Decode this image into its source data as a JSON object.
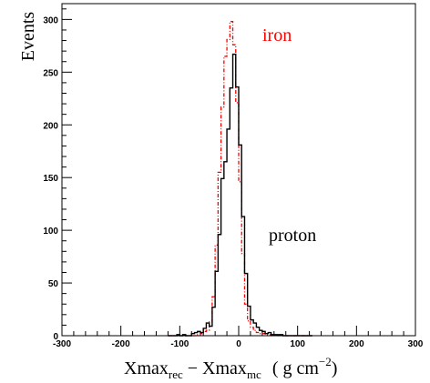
{
  "chart_data": {
    "type": "line",
    "title": "",
    "ylabel": "Events",
    "xlabel": {
      "base1": "Xmax",
      "sub1": "rec",
      "minus": "−",
      "base2": "Xmax",
      "sub2": "mc",
      "unit_open": "( g cm",
      "unit_exp": "−2",
      "unit_close": ")"
    },
    "xlim": [
      -300,
      300
    ],
    "ylim": [
      0,
      315
    ],
    "x_ticks": [
      -300,
      -200,
      -100,
      0,
      100,
      200,
      300
    ],
    "y_ticks": [
      0,
      50,
      100,
      150,
      200,
      250,
      300
    ],
    "bin_width": 5,
    "bin_start": -120,
    "grid": false,
    "series": [
      {
        "name": "proton",
        "color": "#000000",
        "style": "solid",
        "values": [
          0,
          0,
          0,
          1,
          0,
          1,
          0,
          0,
          2,
          3,
          4,
          3,
          7,
          12,
          9,
          27,
          61,
          96,
          149,
          165,
          196,
          235,
          267,
          236,
          181,
          113,
          59,
          28,
          15,
          12,
          8,
          5,
          4,
          2,
          3,
          1,
          1,
          1,
          1,
          0,
          0,
          0,
          0,
          0,
          0,
          0,
          0,
          0,
          0
        ]
      },
      {
        "name": "iron",
        "color": "#ff0000",
        "style": "dotted",
        "values": [
          0,
          0,
          0,
          0,
          0,
          0,
          0,
          0,
          0,
          0,
          1,
          2,
          4,
          5,
          13,
          37,
          86,
          155,
          217,
          265,
          281,
          298,
          276,
          221,
          146,
          78,
          30,
          14,
          8,
          5,
          3,
          2,
          2,
          1,
          1,
          0,
          0,
          0,
          0,
          0,
          0,
          0,
          0,
          0,
          0,
          0,
          0,
          0,
          0
        ]
      }
    ],
    "annotations": [
      {
        "text": "iron",
        "color": "#ff0000"
      },
      {
        "text": "proton",
        "color": "#000000"
      }
    ]
  }
}
